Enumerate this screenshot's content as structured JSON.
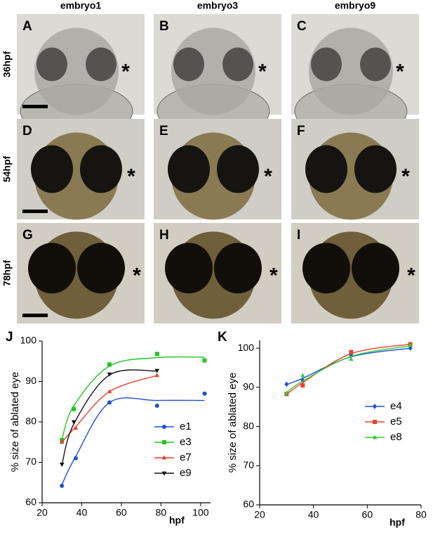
{
  "figure": {
    "columns": [
      "embryo1",
      "embryo3",
      "embryo9"
    ],
    "rows": [
      "36hpf",
      "54hpf",
      "78hpf"
    ],
    "panels": [
      {
        "label": "A",
        "mark": "*"
      },
      {
        "label": "B",
        "mark": "*"
      },
      {
        "label": "C",
        "mark": "*"
      },
      {
        "label": "D",
        "mark": "*"
      },
      {
        "label": "E",
        "mark": "*"
      },
      {
        "label": "F",
        "mark": "*"
      },
      {
        "label": "G",
        "mark": "*"
      },
      {
        "label": "H",
        "mark": "*"
      },
      {
        "label": "I",
        "mark": "*"
      }
    ]
  },
  "chart_data": [
    {
      "type": "scatter",
      "label": "J",
      "y_label": "% size of ablated eye",
      "x_label": "hpf",
      "xlim": [
        20,
        105
      ],
      "ylim": [
        60,
        100
      ],
      "xticks": [
        20,
        40,
        60,
        80,
        100
      ],
      "yticks": [
        60,
        70,
        80,
        90,
        100
      ],
      "legend": "lower right",
      "series": [
        {
          "name": "e1",
          "color": "#1f4fd6",
          "marker": "circle",
          "x": [
            30,
            37,
            54,
            78,
            102
          ],
          "values": [
            64.2,
            71,
            84.8,
            84,
            87
          ],
          "fit": [
            64.5,
            71.5,
            84.8,
            85.3,
            85.3
          ]
        },
        {
          "name": "e3",
          "color": "#22c322",
          "marker": "square",
          "x": [
            30,
            36,
            54,
            78,
            102
          ],
          "values": [
            75.5,
            83.2,
            94.2,
            96.8,
            95.2
          ],
          "fit": [
            75.8,
            84,
            93.8,
            95.9,
            96
          ]
        },
        {
          "name": "e7",
          "color": "#e8412c",
          "marker": "triangle",
          "x": [
            30,
            37,
            54,
            78
          ],
          "values": [
            75,
            78.5,
            87.5,
            91.5
          ],
          "fit": [
            75,
            78.8,
            87.5,
            91.5
          ]
        },
        {
          "name": "e9",
          "color": "#111111",
          "marker": "triangle-down",
          "x": [
            30,
            36,
            54,
            78
          ],
          "values": [
            69.5,
            80,
            91.8,
            92.7
          ],
          "fit": [
            69.5,
            79.5,
            91.6,
            92.6
          ]
        }
      ]
    },
    {
      "type": "scatter",
      "label": "K",
      "y_label": "% size of ablated eye",
      "x_label": "hpf",
      "xlim": [
        20,
        80
      ],
      "ylim": [
        60,
        102
      ],
      "xticks": [
        20,
        40,
        60,
        80
      ],
      "yticks": [
        60,
        70,
        80,
        90,
        100
      ],
      "legend": "center right",
      "series": [
        {
          "name": "e4",
          "color": "#1f4fd6",
          "marker": "diamond",
          "x": [
            30,
            36,
            54,
            76
          ],
          "values": [
            90.8,
            91.8,
            98.2,
            100
          ],
          "fit": [
            90.7,
            92.3,
            97.8,
            100
          ]
        },
        {
          "name": "e5",
          "color": "#e8412c",
          "marker": "square",
          "x": [
            30,
            36,
            54,
            76
          ],
          "values": [
            88.3,
            90.5,
            99,
            101
          ],
          "fit": [
            88.2,
            91.2,
            98.6,
            101
          ]
        },
        {
          "name": "e8",
          "color": "#33cc33",
          "marker": "triangle",
          "x": [
            30,
            36,
            54,
            76
          ],
          "values": [
            88.5,
            93,
            97.2,
            100.8
          ],
          "fit": [
            88.7,
            91.6,
            97.9,
            100.6
          ]
        }
      ]
    }
  ]
}
